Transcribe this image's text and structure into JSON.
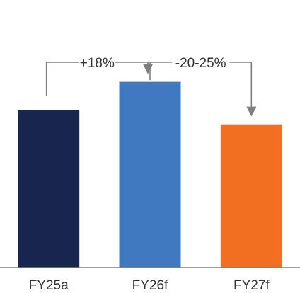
{
  "chart_data": {
    "type": "bar",
    "title": "",
    "xlabel": "",
    "ylabel": "",
    "categories": [
      "FY25a",
      "FY26f",
      "FY27f"
    ],
    "values": [
      100,
      118,
      91
    ],
    "ylim": [
      0,
      170
    ],
    "grid": false,
    "legend": "none",
    "colors": [
      "#18254f",
      "#4179c0",
      "#f26f21"
    ],
    "annotations": [
      {
        "from": "FY25a",
        "to": "FY26f",
        "text": "+18%"
      },
      {
        "from": "FY26f",
        "to": "FY27f",
        "text": "-20-25%"
      }
    ],
    "axis_color": "#7f7f7f",
    "arrow_color": "#7f7f7f"
  }
}
